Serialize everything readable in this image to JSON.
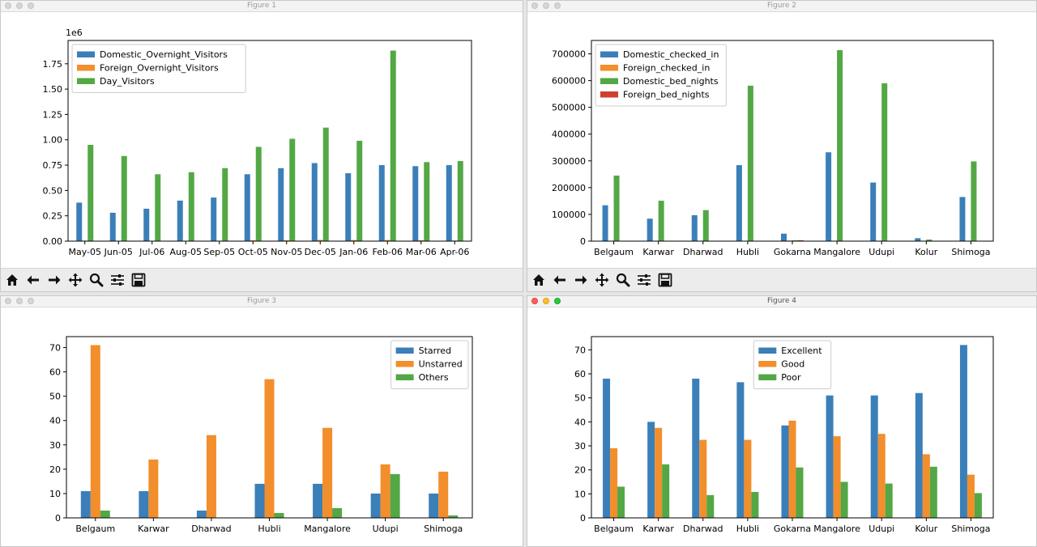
{
  "colors": {
    "blue": "#3b7fb9",
    "orange": "#f28e2b",
    "green": "#53a845",
    "red": "#cf3e2f"
  },
  "toolbar_icons": [
    "home-icon",
    "back-arrow-icon",
    "forward-arrow-icon",
    "pan-icon",
    "zoom-icon",
    "configure-subplots-icon",
    "save-icon"
  ],
  "windows": [
    {
      "title": "Figure 1",
      "active": false
    },
    {
      "title": "Figure 2",
      "active": false
    },
    {
      "title": "Figure 3",
      "active": false
    },
    {
      "title": "Figure 4",
      "active": true
    }
  ],
  "chart_data": [
    {
      "type": "bar",
      "figure": "Figure 1",
      "categories": [
        "May-05",
        "Jun-05",
        "Jul-06",
        "Aug-05",
        "Sep-05",
        "Oct-05",
        "Nov-05",
        "Dec-05",
        "Jan-06",
        "Feb-06",
        "Mar-06",
        "Apr-06"
      ],
      "series": [
        {
          "name": "Domestic_Overnight_Visitors",
          "color": "blue",
          "values": [
            0.38,
            0.28,
            0.32,
            0.4,
            0.43,
            0.66,
            0.72,
            0.77,
            0.67,
            0.75,
            0.74,
            0.75
          ]
        },
        {
          "name": "Foreign_Overnight_Visitors",
          "color": "orange",
          "values": [
            0.005,
            0.004,
            0.004,
            0.004,
            0.004,
            0.008,
            0.009,
            0.012,
            0.011,
            0.011,
            0.009,
            0.006
          ]
        },
        {
          "name": "Day_Visitors",
          "color": "green",
          "values": [
            0.95,
            0.84,
            0.66,
            0.68,
            0.72,
            0.93,
            1.01,
            1.12,
            0.99,
            1.88,
            0.78,
            0.79
          ]
        }
      ],
      "ylim": [
        0,
        1.98
      ],
      "yticks": [
        0,
        0.25,
        0.5,
        0.75,
        1.0,
        1.25,
        1.5,
        1.75
      ],
      "ytick_labels": [
        "0.00",
        "0.25",
        "0.50",
        "0.75",
        "1.00",
        "1.25",
        "1.50",
        "1.75"
      ],
      "offset_label": "1e6",
      "legend": "top-left",
      "grid": false
    },
    {
      "type": "bar",
      "figure": "Figure 2",
      "categories": [
        "Belgaum",
        "Karwar",
        "Dharwad",
        "Hubli",
        "Gokarna",
        "Mangalore",
        "Udupi",
        "Kolur",
        "Shimoga"
      ],
      "series": [
        {
          "name": "Domestic_checked_in",
          "color": "blue",
          "values": [
            134000,
            84000,
            97000,
            284000,
            28000,
            332000,
            219000,
            11000,
            165000
          ]
        },
        {
          "name": "Foreign_checked_in",
          "color": "orange",
          "values": [
            200,
            100,
            100,
            400,
            2200,
            800,
            600,
            600,
            200
          ]
        },
        {
          "name": "Domestic_bed_nights",
          "color": "green",
          "values": [
            245000,
            151000,
            116000,
            581000,
            3000,
            714000,
            590000,
            6000,
            298000
          ]
        },
        {
          "name": "Foreign_bed_nights",
          "color": "red",
          "values": [
            400,
            300,
            200,
            900,
            3200,
            1500,
            1200,
            1000,
            400
          ]
        }
      ],
      "ylim": [
        0,
        750000
      ],
      "yticks": [
        0,
        100000,
        200000,
        300000,
        400000,
        500000,
        600000,
        700000
      ],
      "ytick_labels": [
        "0",
        "100000",
        "200000",
        "300000",
        "400000",
        "500000",
        "600000",
        "700000"
      ],
      "legend": "top-left",
      "grid": false
    },
    {
      "type": "bar",
      "figure": "Figure 3",
      "categories": [
        "Belgaum",
        "Karwar",
        "Dharwad",
        "Hubli",
        "Mangalore",
        "Udupi",
        "Shimoga"
      ],
      "series": [
        {
          "name": "Starred",
          "color": "blue",
          "values": [
            11,
            11,
            3,
            14,
            14,
            10,
            10
          ]
        },
        {
          "name": "Unstarred",
          "color": "orange",
          "values": [
            71,
            24,
            34,
            57,
            37,
            22,
            19
          ]
        },
        {
          "name": "Others",
          "color": "green",
          "values": [
            3,
            0,
            0,
            2,
            4,
            18,
            1
          ]
        }
      ],
      "ylim": [
        0,
        74.5
      ],
      "yticks": [
        0,
        10,
        20,
        30,
        40,
        50,
        60,
        70
      ],
      "ytick_labels": [
        "0",
        "10",
        "20",
        "30",
        "40",
        "50",
        "60",
        "70"
      ],
      "legend": "top-right",
      "grid": false
    },
    {
      "type": "bar",
      "figure": "Figure 4",
      "categories": [
        "Belgaum",
        "Karwar",
        "Dharwad",
        "Hubli",
        "Gokarna",
        "Mangalore",
        "Udupi",
        "Kolur",
        "Shimoga"
      ],
      "series": [
        {
          "name": "Excellent",
          "color": "blue",
          "values": [
            58,
            40,
            58,
            56.5,
            38.5,
            51,
            51,
            52,
            72
          ]
        },
        {
          "name": "Good",
          "color": "orange",
          "values": [
            29,
            37.5,
            32.5,
            32.5,
            40.5,
            34,
            35,
            26.5,
            18
          ]
        },
        {
          "name": "Poor",
          "color": "green",
          "values": [
            13,
            22.3,
            9.5,
            10.8,
            21,
            15,
            14.3,
            21.3,
            10.3
          ]
        }
      ],
      "ylim": [
        0,
        75.5
      ],
      "yticks": [
        0,
        10,
        20,
        30,
        40,
        50,
        60,
        70
      ],
      "ytick_labels": [
        "0",
        "10",
        "20",
        "30",
        "40",
        "50",
        "60",
        "70"
      ],
      "legend": "top-center",
      "grid": false
    }
  ]
}
